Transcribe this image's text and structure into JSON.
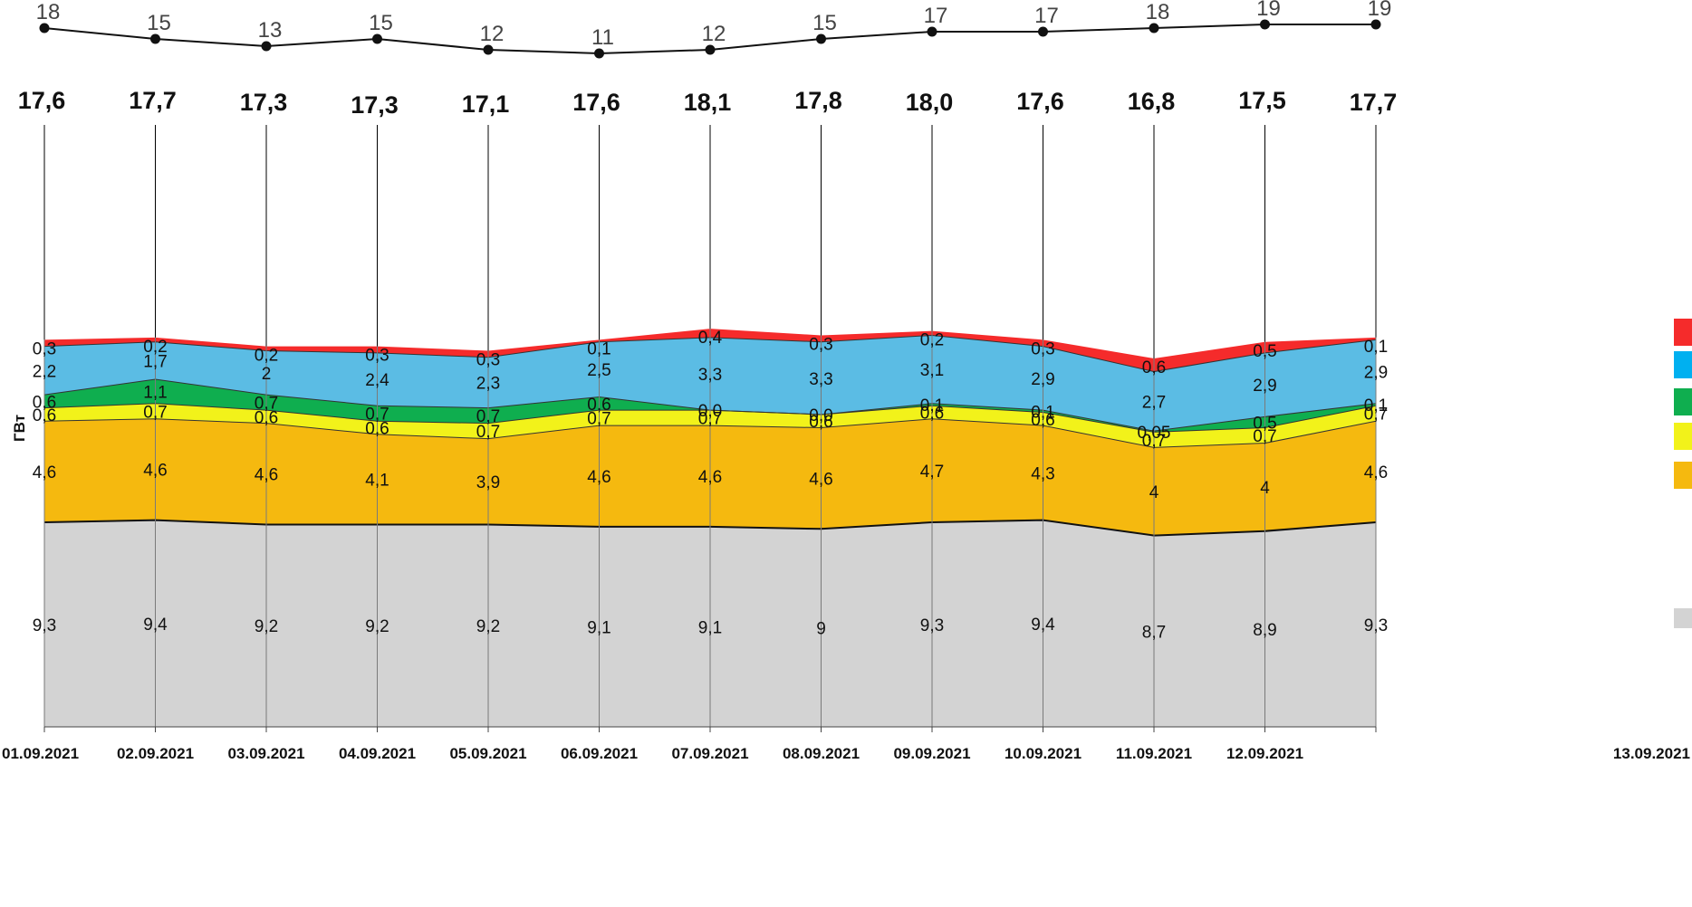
{
  "chart_data": {
    "type": "area",
    "unit_label": "ГВт",
    "categories": [
      "01.09.2021",
      "02.09.2021",
      "03.09.2021",
      "04.09.2021",
      "05.09.2021",
      "06.09.2021",
      "07.09.2021",
      "08.09.2021",
      "09.09.2021",
      "10.09.2021",
      "11.09.2021",
      "12.09.2021",
      "13.09.2021"
    ],
    "temperature": [
      18,
      15,
      13,
      15,
      12,
      11,
      12,
      15,
      17,
      17,
      18,
      19,
      19
    ],
    "totals": [
      "17,6",
      "17,7",
      "17,3",
      "17,3",
      "17,1",
      "17,6",
      "18,1",
      "17,8",
      "18,0",
      "17,6",
      "16,8",
      "17,5",
      "17,7"
    ],
    "series": [
      {
        "color": "#d3d3d3",
        "values": [
          9.3,
          9.4,
          9.2,
          9.2,
          9.2,
          9.1,
          9.1,
          9.0,
          9.3,
          9.4,
          8.7,
          8.9,
          9.3
        ],
        "labels": [
          "9,3",
          "9,4",
          "9,2",
          "9,2",
          "9,2",
          "9,1",
          "9,1",
          "9",
          "9,3",
          "9,4",
          "8,7",
          "8,9",
          "9,3"
        ]
      },
      {
        "color": "#f5b90f",
        "values": [
          4.6,
          4.6,
          4.6,
          4.1,
          3.9,
          4.6,
          4.6,
          4.6,
          4.7,
          4.3,
          4.0,
          4.0,
          4.6
        ],
        "labels": [
          "4,6",
          "4,6",
          "4,6",
          "4,1",
          "3,9",
          "4,6",
          "4,6",
          "4,6",
          "4,7",
          "4,3",
          "4",
          "4",
          "4,6"
        ]
      },
      {
        "color": "#f2f21a",
        "values": [
          0.6,
          0.7,
          0.6,
          0.6,
          0.7,
          0.7,
          0.7,
          0.6,
          0.6,
          0.6,
          0.7,
          0.7,
          0.7
        ],
        "labels": [
          "0,6",
          "0,7",
          "0,6",
          "0,6",
          "0,7",
          "0,7",
          "0,7",
          "0,6",
          "0,6",
          "0,6",
          "0,7",
          "0,7",
          "0,7"
        ]
      },
      {
        "color": "#0fae4f",
        "values": [
          0.6,
          1.1,
          0.7,
          0.7,
          0.7,
          0.6,
          0.0,
          0.0,
          0.1,
          0.1,
          0.05,
          0.5,
          0.1
        ],
        "labels": [
          "0,6",
          "1,1",
          "0,7",
          "0,7",
          "0,7",
          "0,6",
          "0,0",
          "0,0",
          "0,1",
          "0,1",
          "0,05",
          "0,5",
          "0,1"
        ]
      },
      {
        "color": "#5bbce4",
        "values": [
          2.2,
          1.7,
          2.0,
          2.4,
          2.3,
          2.5,
          3.3,
          3.3,
          3.1,
          2.9,
          2.7,
          2.9,
          2.9
        ],
        "labels": [
          "2,2",
          "1,7",
          "2",
          "2,4",
          "2,3",
          "2,5",
          "3,3",
          "3,3",
          "3,1",
          "2,9",
          "2,7",
          "2,9",
          "2,9"
        ]
      },
      {
        "color": "#f52b2b",
        "values": [
          0.3,
          0.2,
          0.2,
          0.3,
          0.3,
          0.1,
          0.4,
          0.3,
          0.2,
          0.3,
          0.6,
          0.5,
          0.1
        ],
        "labels": [
          "0,3",
          "0,2",
          "0,2",
          "0,3",
          "0,3",
          "0,1",
          "0,4",
          "0,3",
          "0,2",
          "0,3",
          "0,6",
          "0,5",
          "0,1"
        ]
      }
    ],
    "legend_colors": [
      "#f52b2b",
      "#00b0f0",
      "#0fae4f",
      "#f2f21a",
      "#f5b90f",
      "#d3d3d3"
    ],
    "ylim": [
      0,
      24
    ],
    "grid": false,
    "legend_position": "right"
  }
}
